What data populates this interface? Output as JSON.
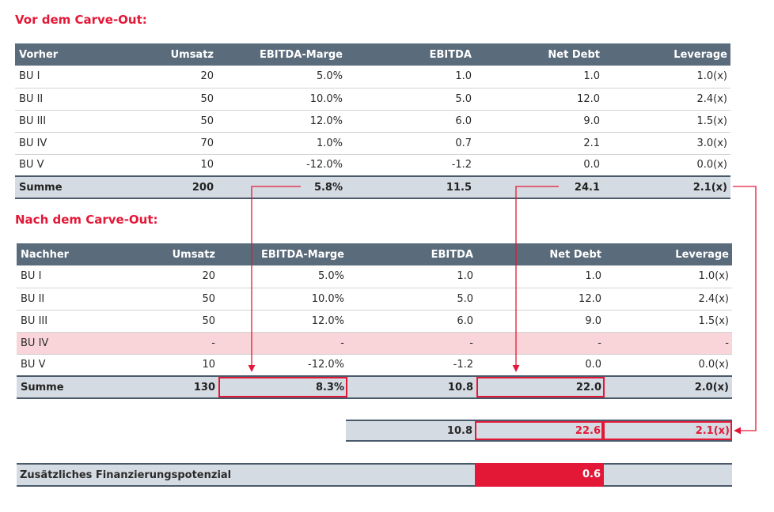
{
  "before": {
    "title": "Vor dem Carve-Out:",
    "headers": [
      "Vorher",
      "Umsatz",
      "EBITDA-Marge",
      "EBITDA",
      "Net Debt",
      "Leverage"
    ],
    "rows": [
      [
        "BU I",
        "20",
        "5.0%",
        "1.0",
        "1.0",
        "1.0(x)"
      ],
      [
        "BU II",
        "50",
        "10.0%",
        "5.0",
        "12.0",
        "2.4(x)"
      ],
      [
        "BU III",
        "50",
        "12.0%",
        "6.0",
        "9.0",
        "1.5(x)"
      ],
      [
        "BU IV",
        "70",
        "1.0%",
        "0.7",
        "2.1",
        "3.0(x)"
      ],
      [
        "BU V",
        "10",
        "-12.0%",
        "-1.2",
        "0.0",
        "0.0(x)"
      ]
    ],
    "sum": [
      "Summe",
      "200",
      "5.8%",
      "11.5",
      "24.1",
      "2.1(x)"
    ]
  },
  "after": {
    "title": "Nach dem Carve-Out:",
    "headers": [
      "Nachher",
      "Umsatz",
      "EBITDA-Marge",
      "EBITDA",
      "Net Debt",
      "Leverage"
    ],
    "rows": [
      [
        "BU I",
        "20",
        "5.0%",
        "1.0",
        "1.0",
        "1.0(x)"
      ],
      [
        "BU II",
        "50",
        "10.0%",
        "5.0",
        "12.0",
        "2.4(x)"
      ],
      [
        "BU III",
        "50",
        "12.0%",
        "6.0",
        "9.0",
        "1.5(x)"
      ],
      [
        "BU IV",
        "-",
        "-",
        "-",
        "-",
        "-"
      ],
      [
        "BU V",
        "10",
        "-12.0%",
        "-1.2",
        "0.0",
        "0.0(x)"
      ]
    ],
    "sum": [
      "Summe",
      "130",
      "8.3%",
      "10.8",
      "22.0",
      "2.0(x)"
    ]
  },
  "comparison": [
    "10.8",
    "22.6",
    "2.1(x)"
  ],
  "potential": {
    "label": "Zusätzliches Finanzierungspotenzial",
    "value": "0.6"
  },
  "colors": {
    "accent": "#e31837",
    "header_bg": "#5a6b7b",
    "sum_bg": "#d5dbe2",
    "removed_row_bg": "#f9d5da"
  }
}
